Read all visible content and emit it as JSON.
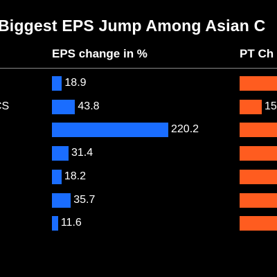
{
  "colors": {
    "background": "#000000",
    "eps_bar": "#1a6dff",
    "pt_bar": "#ff5c1f",
    "text": "#ffffff",
    "divider": "#8a8a8a"
  },
  "chart_data": {
    "type": "bar",
    "title": "Biggest EPS Jump Among Asian C",
    "columns": [
      {
        "name": "EPS change in %"
      },
      {
        "name": "PT Ch"
      }
    ],
    "categories": [
      "",
      "CS",
      "",
      "",
      "",
      "",
      ""
    ],
    "series": [
      {
        "values": [
          18.9,
          43.8,
          220.2,
          31.4,
          18.2,
          35.7,
          11.6
        ]
      }
    ],
    "value_labels": [
      "18.9",
      "43.8",
      "220.2",
      "31.4",
      "18.2",
      "35.7",
      "11.6"
    ],
    "pt_value_labels": [
      "",
      "15",
      "",
      "",
      "",
      "",
      ""
    ],
    "xlim": [
      0,
      220.2
    ]
  }
}
